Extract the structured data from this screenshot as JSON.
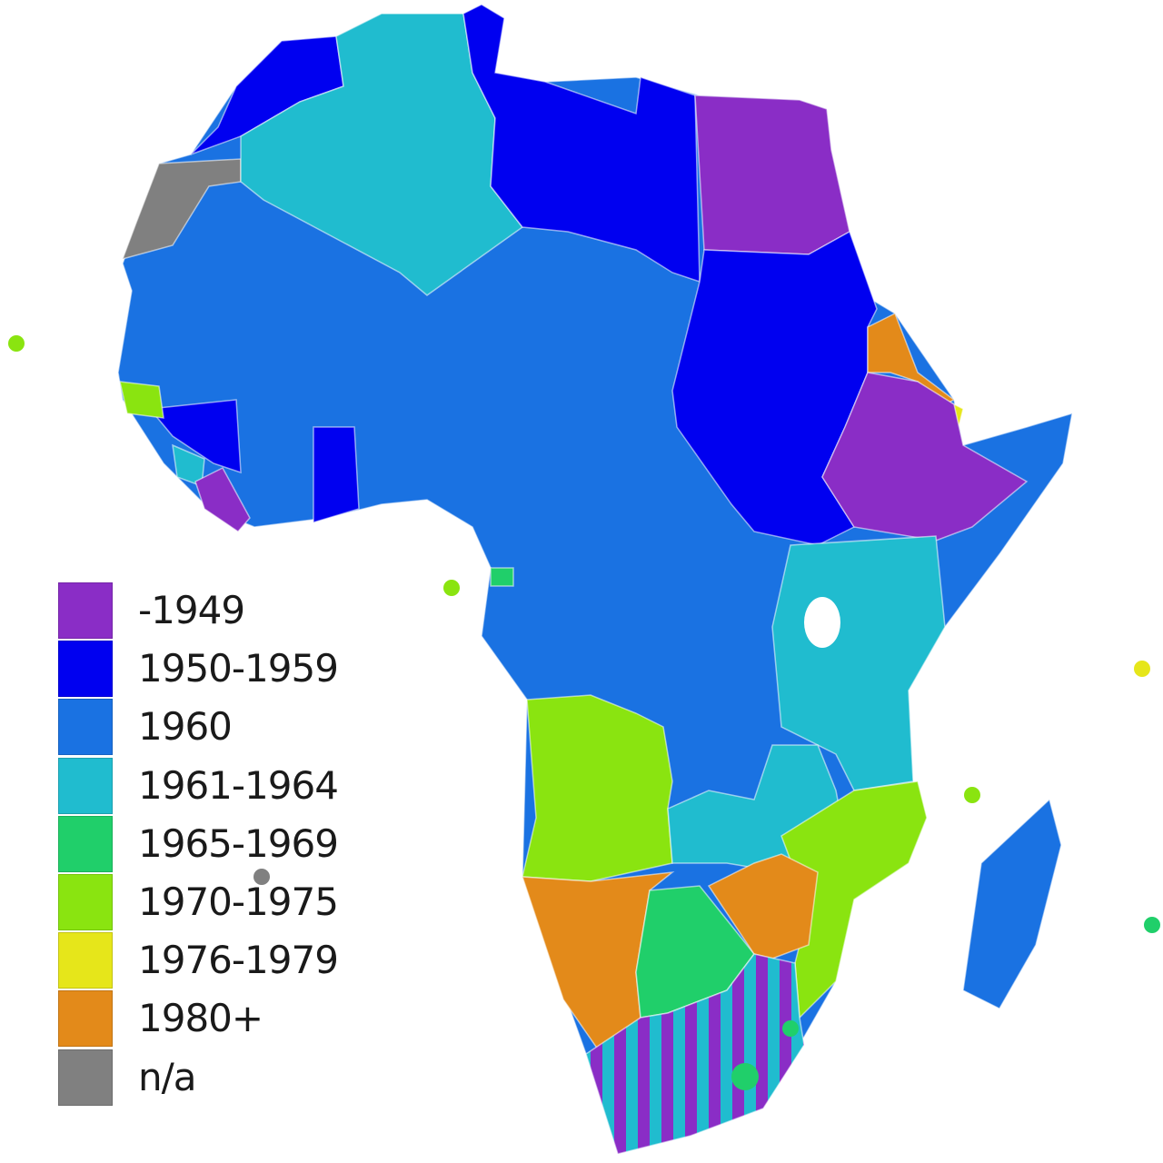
{
  "legend": {
    "items": [
      {
        "label": "-1949",
        "color": "#8a2dc6"
      },
      {
        "label": "1950-1959",
        "color": "#0000f0"
      },
      {
        "label": "1960",
        "color": "#1a72e2"
      },
      {
        "label": "1961-1964",
        "color": "#20bccf"
      },
      {
        "label": "1965-1969",
        "color": "#20cf6a"
      },
      {
        "label": "1970-1975",
        "color": "#8ae410"
      },
      {
        "label": "1976-1979",
        "color": "#e6e61a"
      },
      {
        "label": "1980+",
        "color": "#e38a1a"
      },
      {
        "label": "n/a",
        "color": "#808080"
      }
    ]
  }
}
